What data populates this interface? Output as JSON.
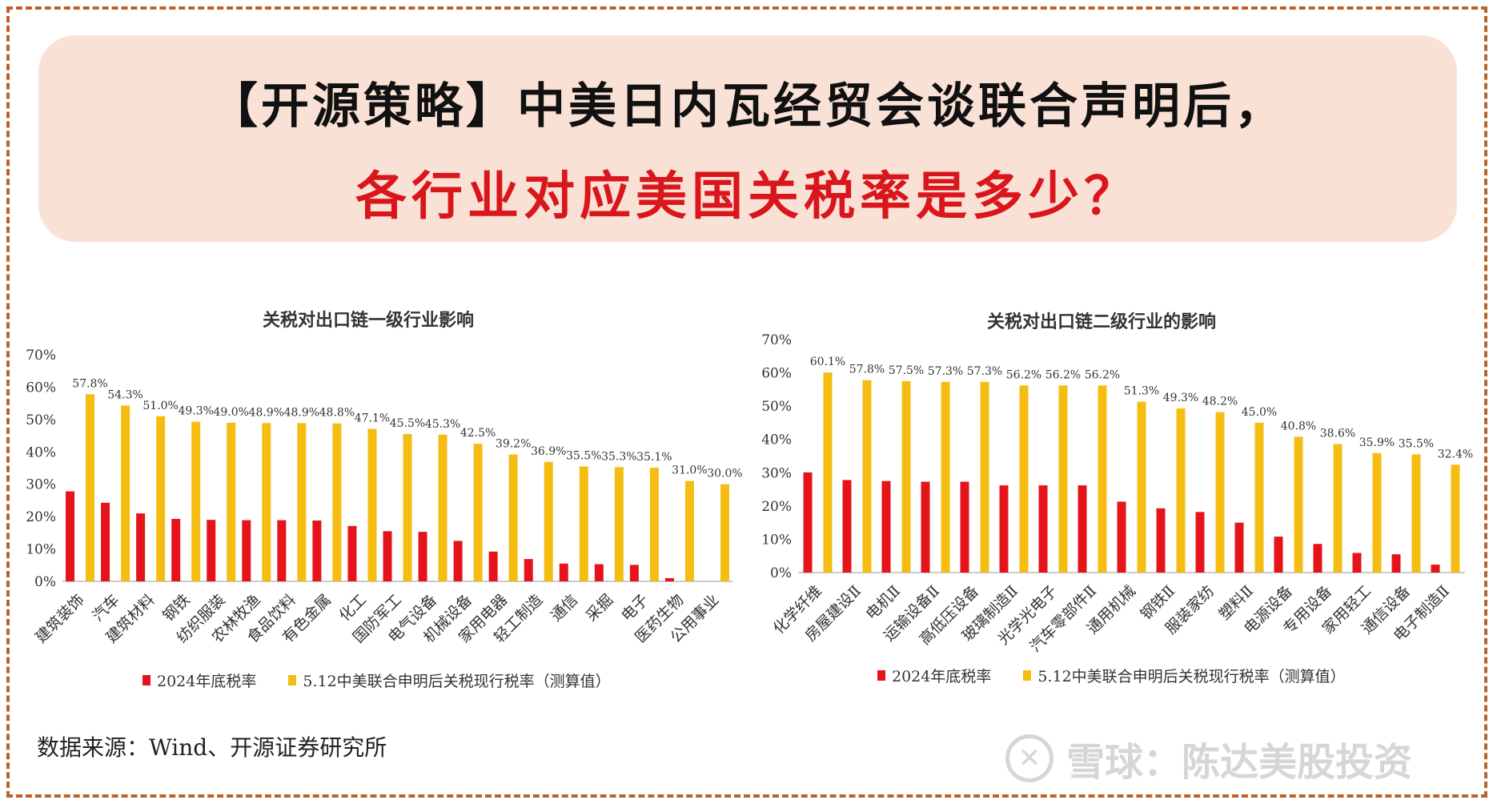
{
  "header": {
    "title_line1": "【开源策略】中美日内瓦经贸会谈联合声明后，",
    "title_line2": "各行业对应美国关税率是多少？"
  },
  "colors": {
    "red": "#e5141a",
    "yellow": "#f5bd12",
    "frame": "#b5652b",
    "banner": "#fae1d6"
  },
  "legend": {
    "series1": "2024年底税率",
    "series2": "5.12中美联合申明后关税现行税率（测算值）"
  },
  "source": "数据来源：Wind、开源证券研究所",
  "watermark": "雪球：陈达美股投资",
  "chart_data": [
    {
      "type": "bar",
      "title": "关税对出口链一级行业影响",
      "categories": [
        "建筑装饰",
        "汽车",
        "建筑材料",
        "钢铁",
        "纺织服装",
        "农林牧渔",
        "食品饮料",
        "有色金属",
        "化工",
        "国防军工",
        "电气设备",
        "机械设备",
        "家用电器",
        "轻工制造",
        "通信",
        "采掘",
        "电子",
        "医药生物",
        "公用事业"
      ],
      "series": [
        {
          "name": "2024年底税率",
          "values": [
            27.8,
            24.3,
            21.0,
            19.3,
            19.0,
            18.9,
            18.9,
            18.8,
            17.1,
            15.5,
            15.3,
            12.5,
            9.2,
            6.9,
            5.5,
            5.3,
            5.1,
            1.0,
            0.0
          ]
        },
        {
          "name": "5.12中美联合申明后关税现行税率（测算值）",
          "values": [
            57.8,
            54.3,
            51.0,
            49.3,
            49.0,
            48.9,
            48.9,
            48.8,
            47.1,
            45.5,
            45.3,
            42.5,
            39.2,
            36.9,
            35.5,
            35.3,
            35.1,
            31.0,
            30.0
          ]
        }
      ],
      "data_labels": [
        "57.8%",
        "54.3%",
        "51.0%",
        "49.3%",
        "49.0%",
        "48.9%",
        "48.9%",
        "48.8%",
        "47.1%",
        "45.5%",
        "45.3%",
        "42.5%",
        "39.2%",
        "36.9%",
        "35.5%",
        "35.3%",
        "35.1%",
        "31.0%",
        "30.0%"
      ],
      "yticks": [
        "0%",
        "10%",
        "20%",
        "30%",
        "40%",
        "50%",
        "60%",
        "70%"
      ],
      "ylim": [
        0,
        70
      ]
    },
    {
      "type": "bar",
      "title": "关税对出口链二级行业的影响",
      "categories": [
        "化学纤维",
        "房屋建设Ⅱ",
        "电机Ⅱ",
        "运输设备Ⅱ",
        "高低压设备",
        "玻璃制造Ⅱ",
        "光学光电子",
        "汽车零部件Ⅱ",
        "通用机械",
        "钢铁Ⅱ",
        "服装家纺",
        "塑料Ⅱ",
        "电源设备",
        "专用设备",
        "家用轻工",
        "通信设备",
        "电子制造Ⅱ"
      ],
      "series": [
        {
          "name": "2024年底税率",
          "values": [
            30.1,
            27.8,
            27.5,
            27.3,
            27.3,
            26.2,
            26.2,
            26.2,
            21.3,
            19.3,
            18.2,
            15.0,
            10.8,
            8.6,
            5.9,
            5.5,
            2.4
          ]
        },
        {
          "name": "5.12中美联合申明后关税现行税率（测算值）",
          "values": [
            60.1,
            57.8,
            57.5,
            57.3,
            57.3,
            56.2,
            56.2,
            56.2,
            51.3,
            49.3,
            48.2,
            45.0,
            40.8,
            38.6,
            35.9,
            35.5,
            32.4
          ]
        }
      ],
      "data_labels": [
        "60.1%",
        "57.8%",
        "57.5%",
        "57.3%",
        "57.3%",
        "56.2%",
        "56.2%",
        "56.2%",
        "51.3%",
        "49.3%",
        "48.2%",
        "45.0%",
        "40.8%",
        "38.6%",
        "35.9%",
        "35.5%",
        "32.4%"
      ],
      "yticks": [
        "0%",
        "10%",
        "20%",
        "30%",
        "40%",
        "50%",
        "60%",
        "70%"
      ],
      "ylim": [
        0,
        70
      ]
    }
  ]
}
